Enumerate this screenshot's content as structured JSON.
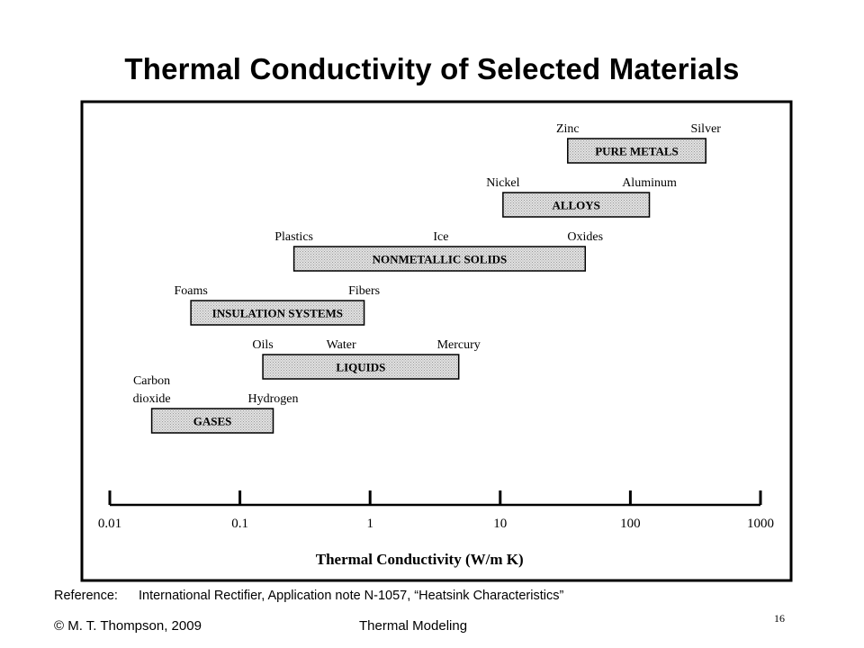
{
  "slide": {
    "title": "Thermal Conductivity of Selected Materials",
    "reference_label": "Reference:",
    "reference_text": "International Rectifier, Application note N-1057, “Heatsink Characteristics”",
    "copyright": "© M. T. Thompson, 2009",
    "course": "Thermal Modeling",
    "page_number": "16"
  },
  "chart_data": {
    "type": "bar",
    "orientation": "horizontal-range",
    "scale": "log",
    "xlabel": "Thermal Conductivity (W/m K)",
    "xlim": [
      0.01,
      1000
    ],
    "ticks": [
      {
        "value": 0.01,
        "label": "0.01"
      },
      {
        "value": 0.1,
        "label": "0.1"
      },
      {
        "value": 1,
        "label": "1"
      },
      {
        "value": 10,
        "label": "10"
      },
      {
        "value": 100,
        "label": "100"
      },
      {
        "value": 1000,
        "label": "1000"
      }
    ],
    "categories": [
      {
        "name": "PURE METALS",
        "low": 33,
        "high": 380,
        "labels": [
          {
            "text": "Zinc",
            "value": 33
          },
          {
            "text": "Silver",
            "value": 380
          }
        ]
      },
      {
        "name": "ALLOYS",
        "low": 10.5,
        "high": 140,
        "labels": [
          {
            "text": "Nickel",
            "value": 10.5
          },
          {
            "text": "Aluminum",
            "value": 140
          }
        ]
      },
      {
        "name": "NONMETALLIC SOLIDS",
        "low": 0.26,
        "high": 45,
        "labels": [
          {
            "text": "Plastics",
            "value": 0.26
          },
          {
            "text": "Ice",
            "value": 3.5
          },
          {
            "text": "Oxides",
            "value": 45
          }
        ]
      },
      {
        "name": "INSULATION SYSTEMS",
        "low": 0.042,
        "high": 0.9,
        "labels": [
          {
            "text": "Foams",
            "value": 0.042
          },
          {
            "text": "Fibers",
            "value": 0.9
          }
        ]
      },
      {
        "name": "LIQUIDS",
        "low": 0.15,
        "high": 4.8,
        "labels": [
          {
            "text": "Oils",
            "value": 0.15
          },
          {
            "text": "Water",
            "value": 0.6
          },
          {
            "text": "Mercury",
            "value": 4.8
          }
        ]
      },
      {
        "name": "GASES",
        "low": 0.021,
        "high": 0.18,
        "labels": [
          {
            "text": "Carbon\ndioxide",
            "value": 0.021
          },
          {
            "text": "Hydrogen",
            "value": 0.18
          }
        ]
      }
    ]
  }
}
